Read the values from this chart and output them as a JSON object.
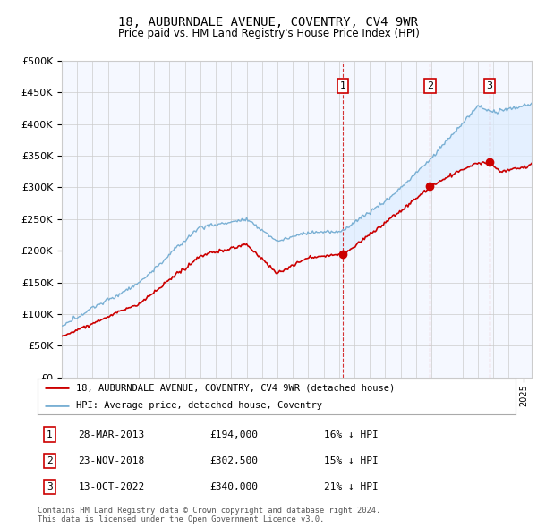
{
  "title": "18, AUBURNDALE AVENUE, COVENTRY, CV4 9WR",
  "subtitle": "Price paid vs. HM Land Registry's House Price Index (HPI)",
  "ylim": [
    0,
    500000
  ],
  "yticks": [
    0,
    50000,
    100000,
    150000,
    200000,
    250000,
    300000,
    350000,
    400000,
    450000,
    500000
  ],
  "hpi_color": "#7ab0d4",
  "price_color": "#cc0000",
  "fill_color": "#ddeeff",
  "plot_bg": "#f5f8ff",
  "legend_labels": [
    "18, AUBURNDALE AVENUE, COVENTRY, CV4 9WR (detached house)",
    "HPI: Average price, detached house, Coventry"
  ],
  "sale_years_decimal": [
    2013.24,
    2018.9,
    2022.78
  ],
  "sale_prices": [
    194000,
    302500,
    340000
  ],
  "sale_info": [
    {
      "label": "1",
      "date": "28-MAR-2013",
      "price": "£194,000",
      "note": "16% ↓ HPI"
    },
    {
      "label": "2",
      "date": "23-NOV-2018",
      "price": "£302,500",
      "note": "15% ↓ HPI"
    },
    {
      "label": "3",
      "date": "13-OCT-2022",
      "price": "£340,000",
      "note": "21% ↓ HPI"
    }
  ],
  "footer": "Contains HM Land Registry data © Crown copyright and database right 2024.\nThis data is licensed under the Open Government Licence v3.0.",
  "xstart": 1995.0,
  "xend": 2025.5
}
